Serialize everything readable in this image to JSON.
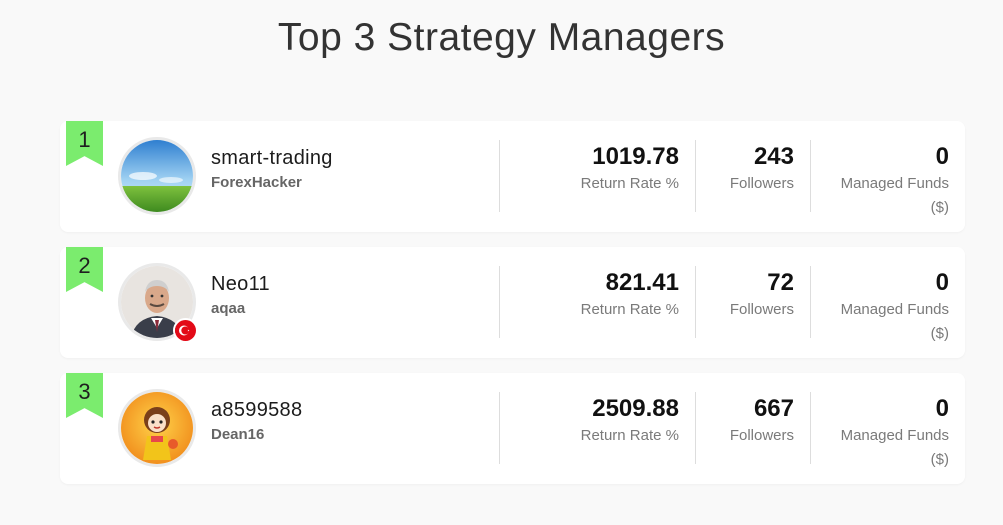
{
  "page": {
    "title": "Top 3 Strategy Managers"
  },
  "managers": [
    {
      "rank": "1",
      "name": "smart-trading",
      "subname": "ForexHacker",
      "avatar_icon": "landscape-avatar-icon",
      "return_rate": "1019.78",
      "return_rate_label": "Return Rate %",
      "followers": "243",
      "followers_label": "Followers",
      "managed_funds": "0",
      "managed_funds_label": "Managed Funds ($)"
    },
    {
      "rank": "2",
      "name": "Neo11",
      "subname": "aqaa",
      "avatar_icon": "man-portrait-avatar-icon",
      "country_flag_icon": "turkey-flag-icon",
      "return_rate": "821.41",
      "return_rate_label": "Return Rate %",
      "followers": "72",
      "followers_label": "Followers",
      "managed_funds": "0",
      "managed_funds_label": "Managed Funds ($)"
    },
    {
      "rank": "3",
      "name": "a8599588",
      "subname": "Dean16",
      "avatar_icon": "cartoon-girl-avatar-icon",
      "return_rate": "2509.88",
      "return_rate_label": "Return Rate %",
      "followers": "667",
      "followers_label": "Followers",
      "managed_funds": "0",
      "managed_funds_label": "Managed Funds ($)"
    }
  ],
  "colors": {
    "ribbon": "#7bec6e",
    "card_bg": "#ffffff",
    "page_bg": "#f9f9f9"
  }
}
